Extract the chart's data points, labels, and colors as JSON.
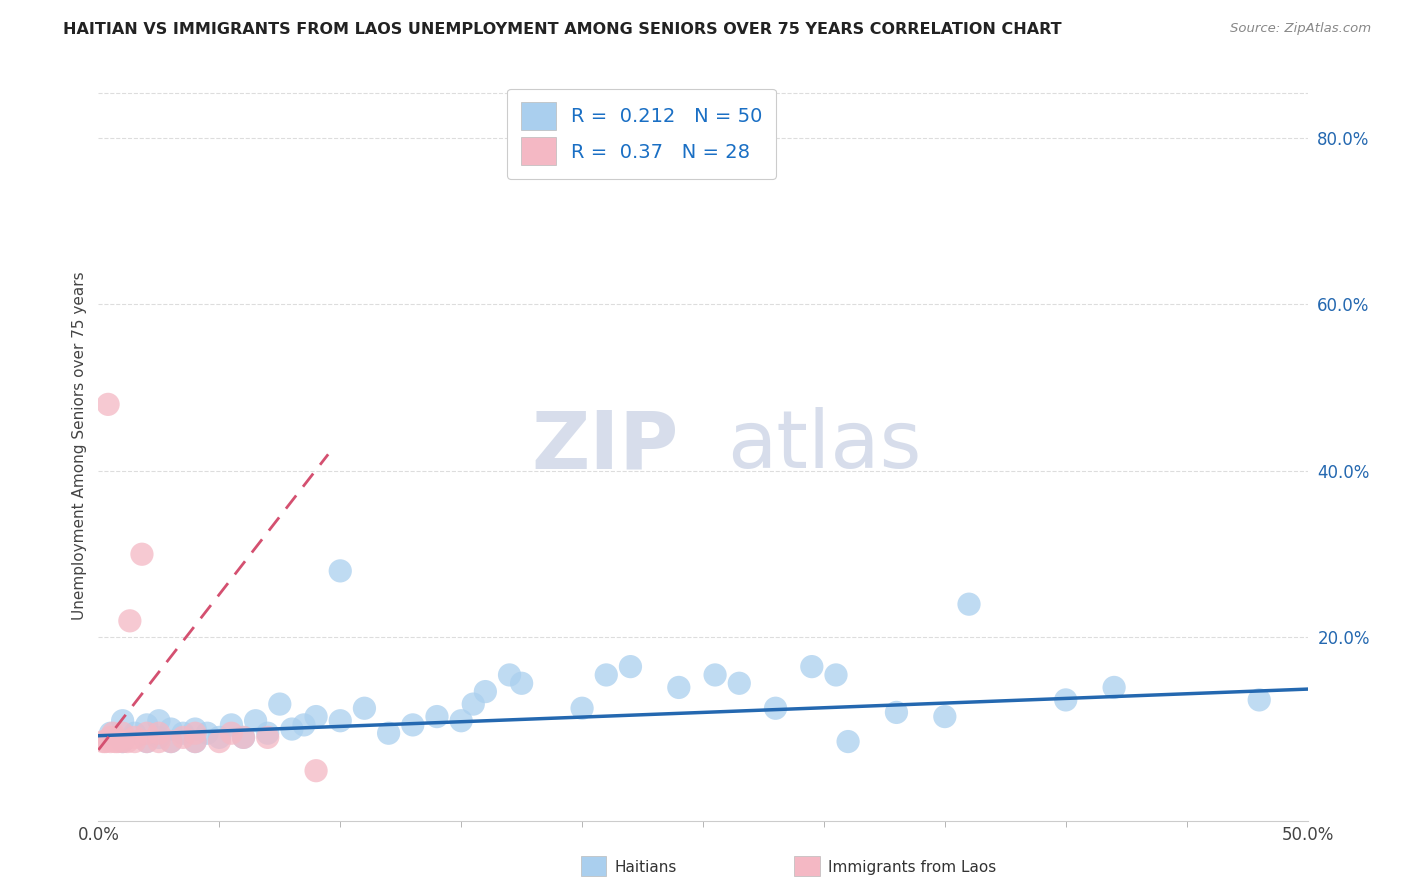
{
  "title": "HAITIAN VS IMMIGRANTS FROM LAOS UNEMPLOYMENT AMONG SENIORS OVER 75 YEARS CORRELATION CHART",
  "source": "Source: ZipAtlas.com",
  "ylabel": "Unemployment Among Seniors over 75 years",
  "xlim": [
    0,
    0.5
  ],
  "ylim": [
    -0.02,
    0.88
  ],
  "xticks": [
    0.0,
    0.5
  ],
  "xtick_labels": [
    "0.0%",
    "50.0%"
  ],
  "ytick_labels": [
    "20.0%",
    "40.0%",
    "60.0%",
    "80.0%"
  ],
  "ytick_values": [
    0.2,
    0.4,
    0.6,
    0.8
  ],
  "blue_color": "#aacfee",
  "pink_color": "#f4b8c4",
  "blue_line_color": "#2468b0",
  "pink_line_color": "#d45070",
  "legend_label_1": "Haitians",
  "legend_label_2": "Immigrants from Laos",
  "R1": 0.212,
  "N1": 50,
  "R2": 0.37,
  "N2": 28,
  "watermark_zip": "ZIP",
  "watermark_atlas": "atlas",
  "blue_scatter_x": [
    0.005,
    0.01,
    0.01,
    0.015,
    0.02,
    0.02,
    0.025,
    0.025,
    0.03,
    0.03,
    0.035,
    0.04,
    0.04,
    0.045,
    0.05,
    0.055,
    0.06,
    0.065,
    0.07,
    0.075,
    0.08,
    0.085,
    0.09,
    0.1,
    0.1,
    0.11,
    0.12,
    0.13,
    0.14,
    0.15,
    0.155,
    0.16,
    0.17,
    0.175,
    0.2,
    0.21,
    0.22,
    0.24,
    0.255,
    0.265,
    0.28,
    0.295,
    0.305,
    0.31,
    0.33,
    0.35,
    0.36,
    0.4,
    0.42,
    0.48
  ],
  "blue_scatter_y": [
    0.085,
    0.075,
    0.1,
    0.085,
    0.075,
    0.095,
    0.08,
    0.1,
    0.075,
    0.09,
    0.085,
    0.075,
    0.09,
    0.085,
    0.08,
    0.095,
    0.08,
    0.1,
    0.085,
    0.12,
    0.09,
    0.095,
    0.105,
    0.28,
    0.1,
    0.115,
    0.085,
    0.095,
    0.105,
    0.1,
    0.12,
    0.135,
    0.155,
    0.145,
    0.115,
    0.155,
    0.165,
    0.14,
    0.155,
    0.145,
    0.115,
    0.165,
    0.155,
    0.075,
    0.11,
    0.105,
    0.24,
    0.125,
    0.14,
    0.125
  ],
  "pink_scatter_x": [
    0.002,
    0.003,
    0.004,
    0.005,
    0.005,
    0.006,
    0.007,
    0.008,
    0.01,
    0.01,
    0.012,
    0.013,
    0.015,
    0.015,
    0.018,
    0.02,
    0.02,
    0.025,
    0.025,
    0.03,
    0.035,
    0.04,
    0.04,
    0.05,
    0.055,
    0.06,
    0.07,
    0.09
  ],
  "pink_scatter_y": [
    0.075,
    0.075,
    0.48,
    0.075,
    0.08,
    0.085,
    0.075,
    0.075,
    0.075,
    0.085,
    0.075,
    0.22,
    0.075,
    0.08,
    0.3,
    0.075,
    0.085,
    0.075,
    0.085,
    0.075,
    0.08,
    0.075,
    0.085,
    0.075,
    0.085,
    0.08,
    0.08,
    0.04
  ],
  "blue_trend_x": [
    0.0,
    0.5
  ],
  "blue_trend_y": [
    0.082,
    0.138
  ],
  "pink_trend_x": [
    0.0,
    0.095
  ],
  "pink_trend_y": [
    0.065,
    0.42
  ],
  "grid_color": "#dddddd",
  "minor_xtick_positions": [
    0.05,
    0.1,
    0.15,
    0.2,
    0.25,
    0.3,
    0.35,
    0.4,
    0.45
  ]
}
